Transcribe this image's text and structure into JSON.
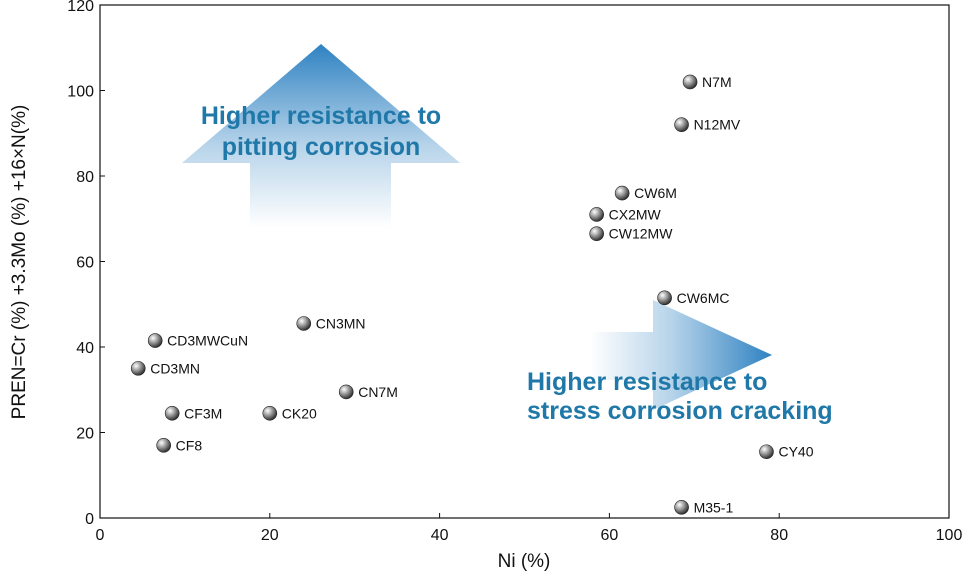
{
  "chart_data": {
    "type": "scatter",
    "title": "",
    "xlabel": "Ni (%)",
    "ylabel": "PREN=Cr (%) +3.3Mo (%) +16×N(%)",
    "xlim": [
      0,
      100
    ],
    "ylim": [
      0,
      120
    ],
    "xticks": [
      0,
      20,
      40,
      60,
      80,
      100
    ],
    "yticks": [
      0,
      20,
      40,
      60,
      80,
      100,
      120
    ],
    "grid": false,
    "points": [
      {
        "label": "N7M",
        "x": 69.5,
        "y": 102
      },
      {
        "label": "N12MV",
        "x": 68.5,
        "y": 92
      },
      {
        "label": "CW6M",
        "x": 61.5,
        "y": 76
      },
      {
        "label": "CX2MW",
        "x": 58.5,
        "y": 71
      },
      {
        "label": "CW12MW",
        "x": 58.5,
        "y": 66.5
      },
      {
        "label": "CW6MC",
        "x": 66.5,
        "y": 51.5
      },
      {
        "label": "CN3MN",
        "x": 24,
        "y": 45.5
      },
      {
        "label": "CD3MWCuN",
        "x": 6.5,
        "y": 41.5
      },
      {
        "label": "CD3MN",
        "x": 4.5,
        "y": 35
      },
      {
        "label": "CN7M",
        "x": 29,
        "y": 29.5
      },
      {
        "label": "CF3M",
        "x": 8.5,
        "y": 24.5
      },
      {
        "label": "CK20",
        "x": 20,
        "y": 24.5
      },
      {
        "label": "CF8",
        "x": 7.5,
        "y": 17
      },
      {
        "label": "CY40",
        "x": 78.5,
        "y": 15.5
      },
      {
        "label": "M35-1",
        "x": 68.5,
        "y": 2.5
      }
    ],
    "annotations": [
      {
        "id": "pitting",
        "line1": "Higher resistance to",
        "line2": "pitting corrosion"
      },
      {
        "id": "scc",
        "line1": "Higher resistance to",
        "line2": "stress corrosion cracking"
      }
    ]
  },
  "colors": {
    "arrow": "#2f82c2",
    "annotation_text": "#1f78a8",
    "point_marker": "#555555"
  }
}
